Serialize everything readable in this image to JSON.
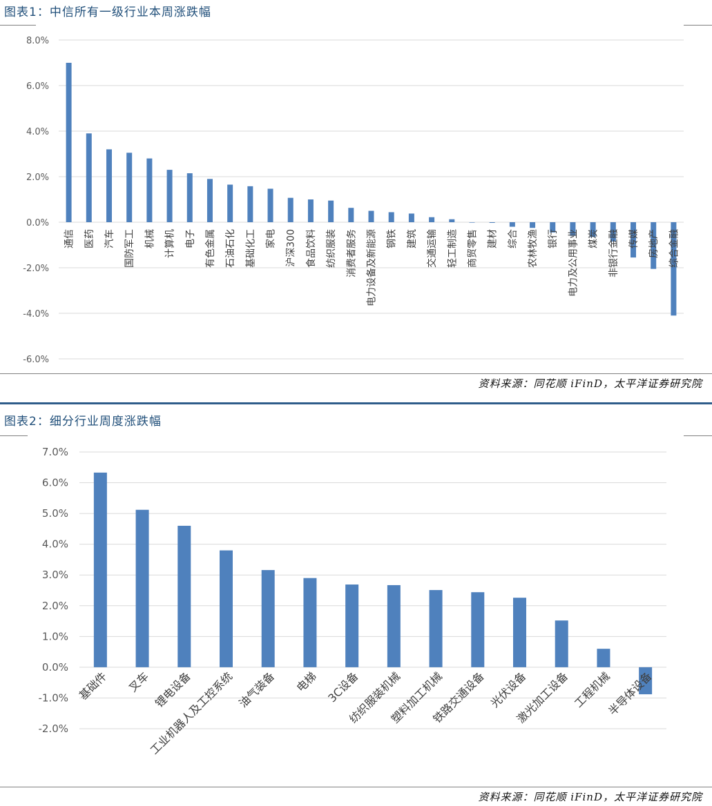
{
  "chart_data": [
    {
      "type": "bar",
      "title": "图表1：中信所有一级行业本周涨跌幅",
      "source": "资料来源：同花顺 iFinD，太平洋证券研究院",
      "ylim": [
        -6,
        8
      ],
      "yticks": [
        "8.0%",
        "6.0%",
        "4.0%",
        "2.0%",
        "0.0%",
        "-2.0%",
        "-4.0%",
        "-6.0%"
      ],
      "ytick_values": [
        8,
        6,
        4,
        2,
        0,
        -2,
        -4,
        -6
      ],
      "grid": true,
      "bar_color": "#4f81bd",
      "categories": [
        "通信",
        "医药",
        "汽车",
        "国防军工",
        "机械",
        "计算机",
        "电子",
        "有色金属",
        "石油石化",
        "基础化工",
        "家电",
        "沪深300",
        "食品饮料",
        "纺织服装",
        "消费者服务",
        "电力设备及新能源",
        "钢铁",
        "建筑",
        "交通运输",
        "轻工制造",
        "商贸零售",
        "建材",
        "综合",
        "农林牧渔",
        "银行",
        "电力及公用事业",
        "煤炭",
        "非银行金融",
        "传媒",
        "房地产",
        "综合金融"
      ],
      "values": [
        7.0,
        3.9,
        3.2,
        3.05,
        2.8,
        2.3,
        2.15,
        1.9,
        1.65,
        1.58,
        1.47,
        1.07,
        1.0,
        0.95,
        0.63,
        0.5,
        0.44,
        0.38,
        0.22,
        0.13,
        -0.02,
        -0.03,
        -0.2,
        -0.25,
        -0.45,
        -0.6,
        -0.65,
        -0.85,
        -1.55,
        -2.05,
        -4.1
      ]
    },
    {
      "type": "bar",
      "title": "图表2：细分行业周度涨跌幅",
      "source": "资料来源：同花顺 iFinD，太平洋证券研究院",
      "ylim": [
        -2,
        7
      ],
      "yticks": [
        "7.0%",
        "6.0%",
        "5.0%",
        "4.0%",
        "3.0%",
        "2.0%",
        "1.0%",
        "0.0%",
        "-1.0%",
        "-2.0%"
      ],
      "ytick_values": [
        7,
        6,
        5,
        4,
        3,
        2,
        1,
        0,
        -1,
        -2
      ],
      "grid": true,
      "bar_color": "#4f81bd",
      "categories": [
        "基础件",
        "叉车",
        "锂电设备",
        "工业机器人及工控系统",
        "油气装备",
        "电梯",
        "3C设备",
        "纺织服装机械",
        "塑料加工机械",
        "铁路交通设备",
        "光伏设备",
        "激光加工设备",
        "工程机械",
        "半导体设备"
      ],
      "values": [
        6.33,
        5.12,
        4.6,
        3.8,
        3.16,
        2.9,
        2.69,
        2.67,
        2.51,
        2.44,
        2.26,
        1.52,
        0.6,
        -0.88
      ]
    }
  ]
}
